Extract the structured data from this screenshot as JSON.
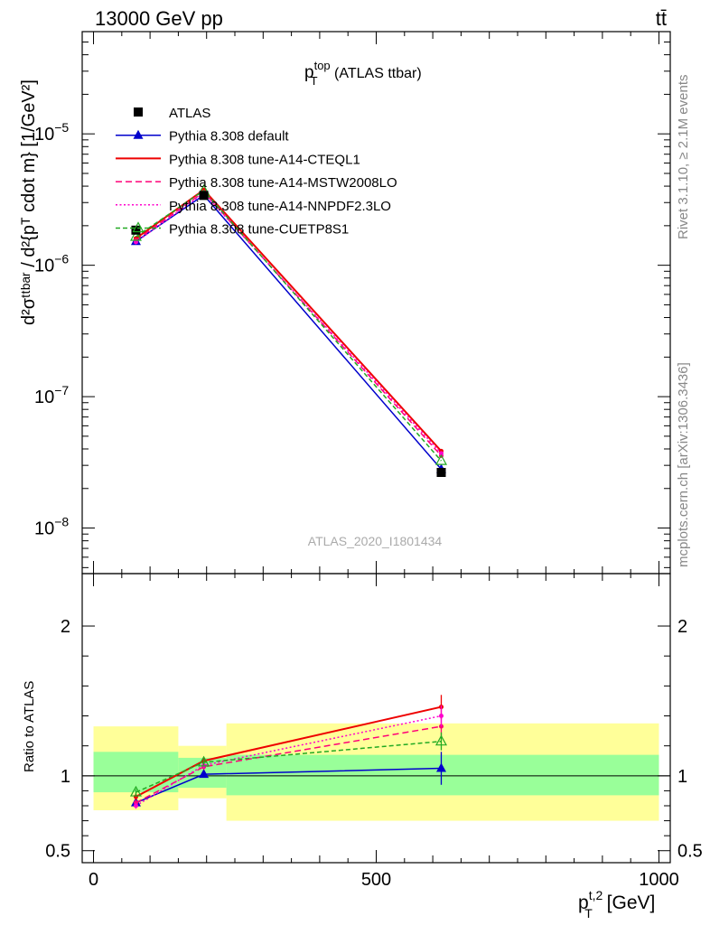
{
  "header": {
    "left": "13000 GeV pp",
    "right": "tt̄"
  },
  "side_text": {
    "rivet": "Rivet 3.1.10, ≥ 2.1M events",
    "mcplots": "mcplots.cern.ch [arXiv:1306.3436]"
  },
  "plot_title": {
    "main": "p",
    "sup": "top",
    "sub": "T",
    "rest": " (ATLAS ttbar)"
  },
  "watermark": "ATLAS_2020_I1801434",
  "ylabel_main": "d²σᵗᵗᵇᵃʳ / d²{pᵀ cdot m} [1/GeV²]",
  "ylabel_ratio": "Ratio to ATLAS",
  "xlabel": {
    "main": "p",
    "sup": "t,2",
    "sub": "T",
    "rest": " [GeV]"
  },
  "colors": {
    "atlas": "#000000",
    "default": "#0000cc",
    "cteql1": "#ee0000",
    "mstw": "#ff0077",
    "nnpdf": "#ff00cc",
    "cuetp8s1": "#22aa22",
    "band_inner": "#99ff99",
    "band_outer": "#ffff99"
  },
  "legend": [
    {
      "label": "ATLAS",
      "key": "atlas"
    },
    {
      "label": "Pythia 8.308 default",
      "key": "default"
    },
    {
      "label": "Pythia 8.308 tune-A14-CTEQL1",
      "key": "cteql1"
    },
    {
      "label": "Pythia 8.308 tune-A14-MSTW2008LO",
      "key": "mstw"
    },
    {
      "label": "Pythia 8.308 tune-A14-NNPDF2.3LO",
      "key": "nnpdf"
    },
    {
      "label": "Pythia 8.308 tune-CUETP8S1",
      "key": "cuetp8s1"
    }
  ],
  "chart_data": {
    "type": "line",
    "x_ticks": [
      0,
      500,
      1000
    ],
    "y_ticks_main": [
      {
        "v": 1e-08,
        "m": "10",
        "e": "−8"
      },
      {
        "v": 1e-07,
        "m": "10",
        "e": "−7"
      },
      {
        "v": 1e-06,
        "m": "10",
        "e": "−6"
      },
      {
        "v": 1e-05,
        "m": "10",
        "e": "−5"
      }
    ],
    "y_ticks_ratio": [
      {
        "v": 0.5,
        "label": "0.5"
      },
      {
        "v": 1,
        "label": "1"
      },
      {
        "v": 2,
        "label": "2"
      }
    ],
    "xlim": [
      -20,
      1020
    ],
    "ylim_main": [
      4.5e-09,
      6e-05
    ],
    "ylim_ratio": [
      0.42,
      2.35
    ],
    "yscale": "log",
    "x": [
      75,
      195,
      615
    ],
    "atlas_values": [
      1.85e-06,
      3.4e-06,
      2.65e-08
    ],
    "atlas_bins": [
      [
        0,
        150
      ],
      [
        150,
        235
      ],
      [
        235,
        1000
      ]
    ],
    "band_inner": [
      [
        0.89,
        1.16
      ],
      [
        0.92,
        1.12
      ],
      [
        0.87,
        1.14
      ]
    ],
    "band_outer": [
      [
        0.77,
        1.33
      ],
      [
        0.85,
        1.2
      ],
      [
        0.7,
        1.35
      ]
    ],
    "series": [
      {
        "name": "Pythia 8.308 default",
        "key": "default",
        "style": "solid",
        "marker": "tri",
        "values": [
          1.52e-06,
          3.42e-06,
          2.8e-08
        ],
        "ratio": [
          0.82,
          1.01,
          1.05
        ],
        "ratio_err": [
          0.03,
          0.02,
          0.11
        ]
      },
      {
        "name": "Pythia 8.308 tune-A14-CTEQL1",
        "key": "cteql1",
        "style": "solid",
        "marker": "none",
        "values": [
          1.6e-06,
          3.75e-06,
          3.85e-08
        ],
        "ratio": [
          0.86,
          1.1,
          1.46
        ],
        "ratio_err": [
          0.02,
          0.02,
          0.08
        ]
      },
      {
        "name": "Pythia 8.308 tune-A14-MSTW2008LO",
        "key": "mstw",
        "style": "dash",
        "marker": "none",
        "values": [
          1.55e-06,
          3.6e-06,
          3.55e-08
        ],
        "ratio": [
          0.82,
          1.06,
          1.33
        ],
        "ratio_err": [
          0.02,
          0.02,
          0.07
        ]
      },
      {
        "name": "Pythia 8.308 tune-A14-NNPDF2.3LO",
        "key": "nnpdf",
        "style": "dot",
        "marker": "none",
        "values": [
          1.5e-06,
          3.55e-06,
          3.7e-08
        ],
        "ratio": [
          0.8,
          1.07,
          1.4
        ],
        "ratio_err": [
          0.02,
          0.02,
          0.07
        ]
      },
      {
        "name": "Pythia 8.308 tune-CUETP8S1",
        "key": "cuetp8s1",
        "style": "dash2",
        "marker": "opentri",
        "values": [
          1.65e-06,
          3.7e-06,
          3.25e-08
        ],
        "ratio": [
          0.89,
          1.09,
          1.23
        ],
        "ratio_err": [
          0.02,
          0.02,
          0.06
        ]
      }
    ]
  }
}
